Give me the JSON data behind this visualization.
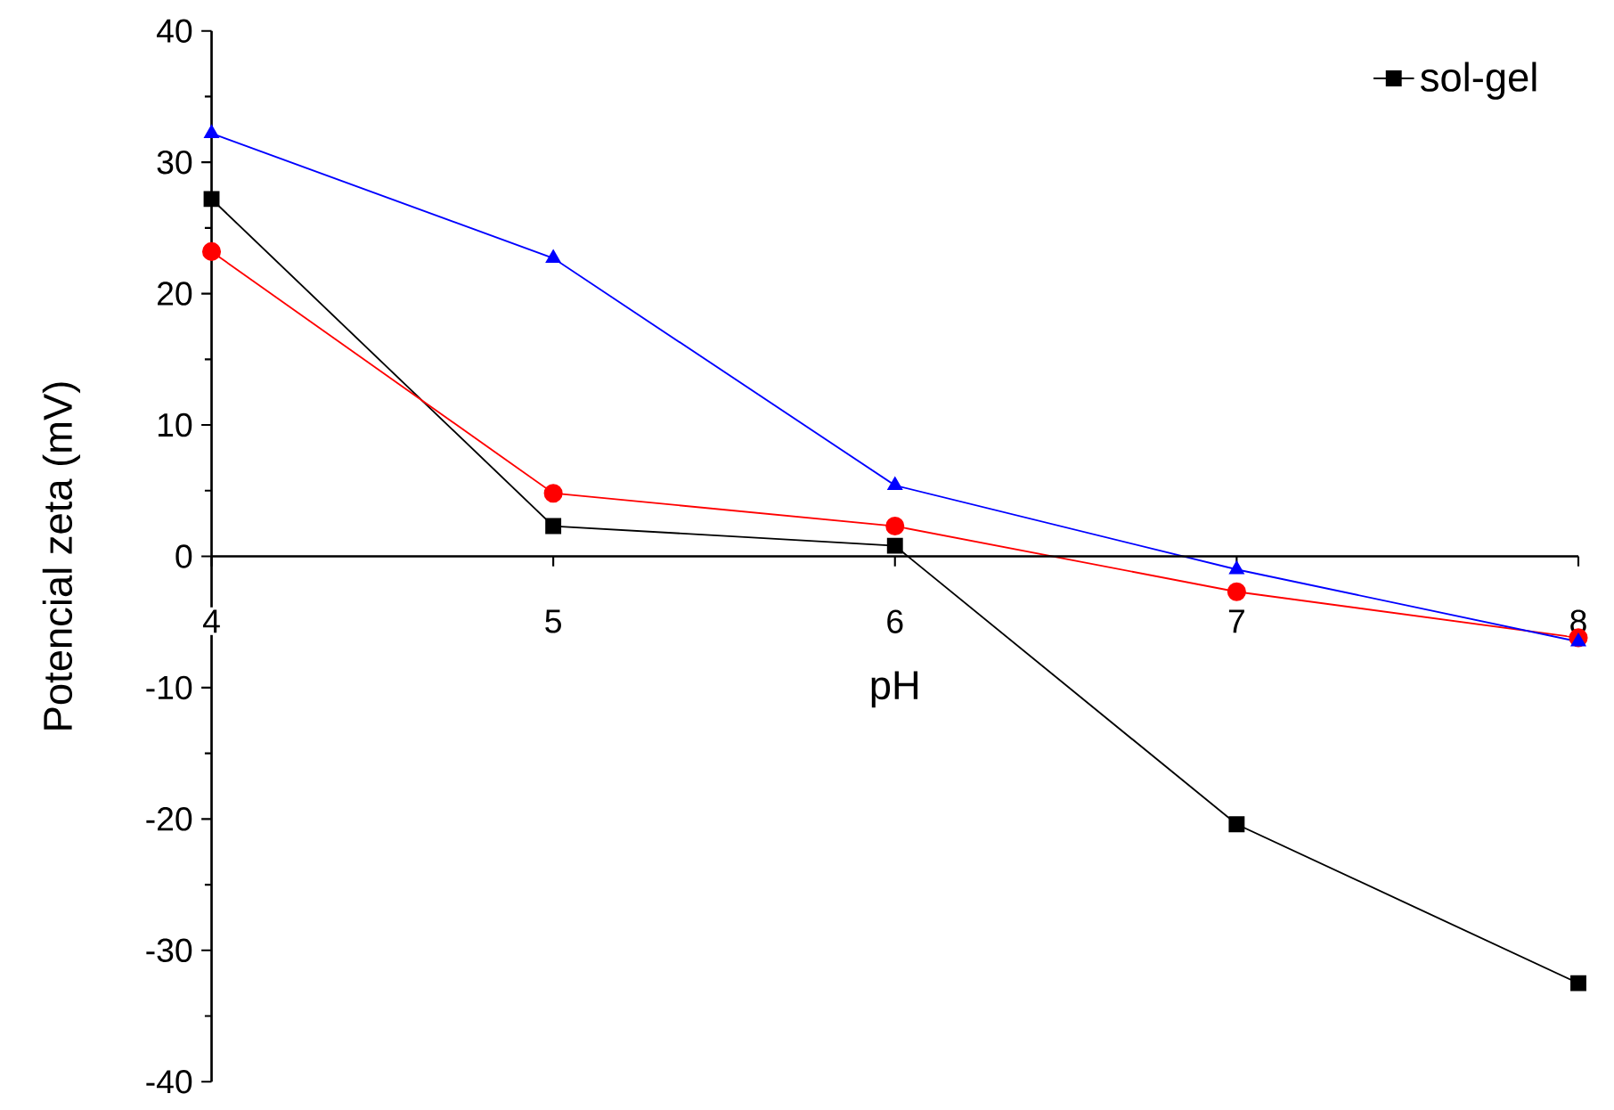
{
  "chart_data": {
    "type": "line",
    "xlabel": "pH",
    "ylabel": "Potencial zeta (mV)",
    "x": [
      4,
      5,
      6,
      7,
      8
    ],
    "xlim": [
      4,
      8
    ],
    "xticks": [
      4,
      5,
      6,
      7,
      8
    ],
    "ylim": [
      -40,
      40
    ],
    "yticks": [
      -40,
      -30,
      -20,
      -10,
      0,
      10,
      20,
      30,
      40
    ],
    "legend": "top right",
    "grid": false,
    "series": [
      {
        "name": "sol-gel",
        "color": "#000000",
        "marker": "square",
        "values": [
          27.2,
          2.3,
          0.8,
          -20.4,
          -32.5
        ]
      },
      {
        "color": "#ff0000",
        "marker": "circle",
        "values": [
          23.2,
          4.8,
          2.3,
          -2.7,
          -6.2
        ]
      },
      {
        "color": "#0000ff",
        "marker": "triangle",
        "values": [
          32.2,
          22.7,
          5.4,
          -1.0,
          -6.5
        ]
      }
    ]
  }
}
